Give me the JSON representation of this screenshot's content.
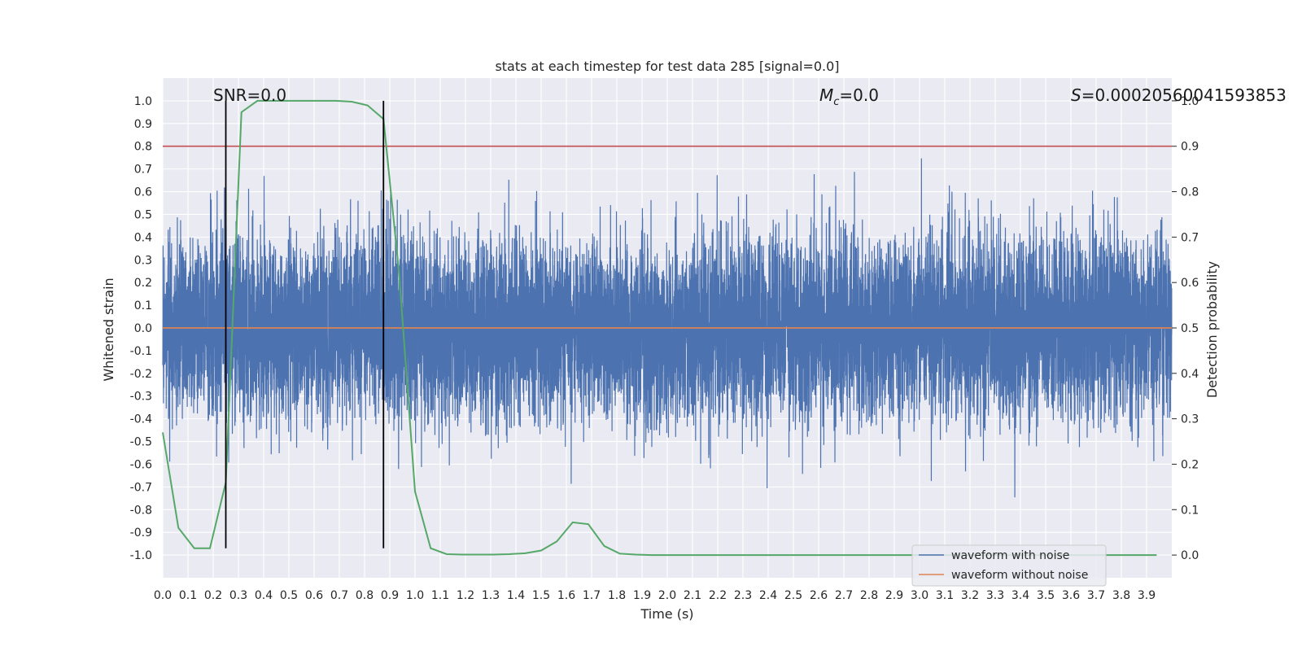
{
  "chart_data": {
    "type": "line",
    "title": "stats at each timestep for test data 285 [signal=0.0]",
    "xlabel": "Time (s)",
    "ylabel": "Whitened strain",
    "ylabel_right": "Detection probability",
    "xlim": [
      0.0,
      4.0
    ],
    "ylim": [
      -1.1,
      1.1
    ],
    "ylim_right": [
      -0.05,
      1.05
    ],
    "x_ticks": [
      0.0,
      0.1,
      0.2,
      0.3,
      0.4,
      0.5,
      0.6,
      0.7,
      0.8,
      0.9,
      1.0,
      1.1,
      1.2,
      1.3,
      1.4,
      1.5,
      1.6,
      1.7,
      1.8,
      1.9,
      2.0,
      2.1,
      2.2,
      2.3,
      2.4,
      2.5,
      2.6,
      2.7,
      2.8,
      2.9,
      3.0,
      3.1,
      3.2,
      3.3,
      3.4,
      3.5,
      3.6,
      3.7,
      3.8,
      3.9
    ],
    "x_tick_labels": [
      "0.0",
      "0.1",
      "0.2",
      "0.3",
      "0.4",
      "0.5",
      "0.6",
      "0.7",
      "0.8",
      "0.9",
      "1.0",
      "1.1",
      "1.2",
      "1.3",
      "1.4",
      "1.5",
      "1.6",
      "1.7",
      "1.8",
      "1.9",
      "2.0",
      "2.1",
      "2.2",
      "2.3",
      "2.4",
      "2.5",
      "2.6",
      "2.7",
      "2.8",
      "2.9",
      "3.0",
      "3.1",
      "3.2",
      "3.3",
      "3.4",
      "3.5",
      "3.6",
      "3.7",
      "3.8",
      "3.9"
    ],
    "y_ticks": [
      1.0,
      0.9,
      0.8,
      0.7,
      0.6,
      0.5,
      0.4,
      0.3,
      0.2,
      0.1,
      0.0,
      -0.1,
      -0.2,
      -0.3,
      -0.4,
      -0.5,
      -0.6,
      -0.7,
      -0.8,
      -0.9,
      -1.0
    ],
    "y_tick_labels": [
      "1.0",
      "0.9",
      "0.8",
      "0.7",
      "0.6",
      "0.5",
      "0.4",
      "0.3",
      "0.2",
      "0.1",
      "0.0",
      "-0.1",
      "-0.2",
      "-0.3",
      "-0.4",
      "-0.5",
      "-0.6",
      "-0.7",
      "-0.8",
      "-0.9",
      "-1.0"
    ],
    "y_right_ticks": [
      1.0,
      0.9,
      0.8,
      0.7,
      0.6,
      0.5,
      0.4,
      0.3,
      0.2,
      0.1,
      0.0
    ],
    "y_right_tick_labels": [
      "1.0",
      "0.9",
      "0.8",
      "0.7",
      "0.6",
      "0.5",
      "0.4",
      "0.3",
      "0.2",
      "0.1",
      "0.0"
    ],
    "grid": true,
    "legend_position": "lower-right",
    "series": [
      {
        "name": "waveform with noise",
        "axis": "left",
        "color": "#4c72b0",
        "description": "dense noise trace sampled at 4096 Hz, values roughly within -0.97 to 1.0",
        "sample_rate_hz": 4096,
        "seed": 285
      },
      {
        "name": "waveform without noise",
        "axis": "left",
        "color": "#dd8452",
        "x": [
          0.0,
          4.0
        ],
        "y": [
          0.0,
          0.0
        ]
      },
      {
        "name": "detection probability",
        "axis": "right",
        "color": "#55a868",
        "x": [
          0.0,
          0.062,
          0.125,
          0.187,
          0.25,
          0.312,
          0.375,
          0.437,
          0.5,
          0.562,
          0.625,
          0.687,
          0.75,
          0.812,
          0.875,
          0.937,
          1.0,
          1.062,
          1.125,
          1.187,
          1.25,
          1.312,
          1.375,
          1.437,
          1.5,
          1.562,
          1.625,
          1.687,
          1.75,
          1.812,
          1.875,
          1.937,
          2.0,
          2.5,
          3.0,
          3.5,
          3.94
        ],
        "y": [
          0.27,
          0.06,
          0.015,
          0.015,
          0.16,
          0.975,
          1.0,
          1.0,
          1.0,
          1.0,
          1.0,
          1.0,
          0.998,
          0.99,
          0.96,
          0.62,
          0.14,
          0.015,
          0.002,
          0.001,
          0.001,
          0.001,
          0.002,
          0.004,
          0.01,
          0.03,
          0.072,
          0.068,
          0.02,
          0.003,
          0.001,
          0.0,
          0.0,
          0.0,
          0.0,
          0.0,
          0.0
        ]
      }
    ],
    "hlines": [
      {
        "name": "threshold",
        "axis": "right",
        "y": 0.9,
        "color": "#c44e52"
      }
    ],
    "vlines": [
      {
        "name": "window-start",
        "x": 0.25,
        "ymin": -0.97,
        "ymax": 1.0,
        "color": "#000000"
      },
      {
        "name": "window-end",
        "x": 0.875,
        "ymin": -0.97,
        "ymax": 1.0,
        "color": "#000000"
      }
    ],
    "annotations": [
      {
        "name": "snr-annotation",
        "text": "SNR=0.0"
      },
      {
        "name": "mc-annotation",
        "text_main": "M",
        "text_sub": "c",
        "text_rest": "=0.0"
      },
      {
        "name": "s-annotation",
        "text_main": "S",
        "text_rest": "=0.00020560041593853"
      }
    ]
  }
}
